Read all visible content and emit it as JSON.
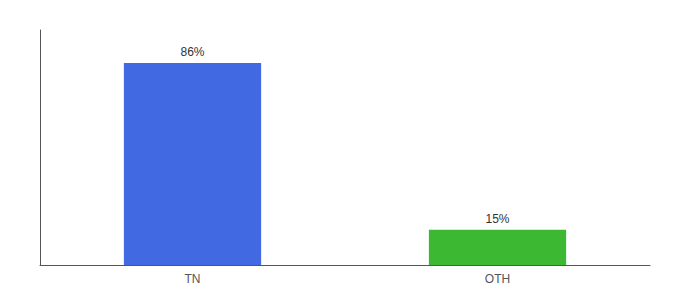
{
  "chart_data": {
    "type": "bar",
    "categories": [
      "TN",
      "OTH"
    ],
    "values": [
      86,
      15
    ],
    "colors": [
      "#4169E1",
      "#3CB832"
    ],
    "value_labels": [
      "86%",
      "15%"
    ],
    "data_labels": true,
    "ylim": [
      0,
      100
    ],
    "tick_labels": "x",
    "grid": false
  }
}
